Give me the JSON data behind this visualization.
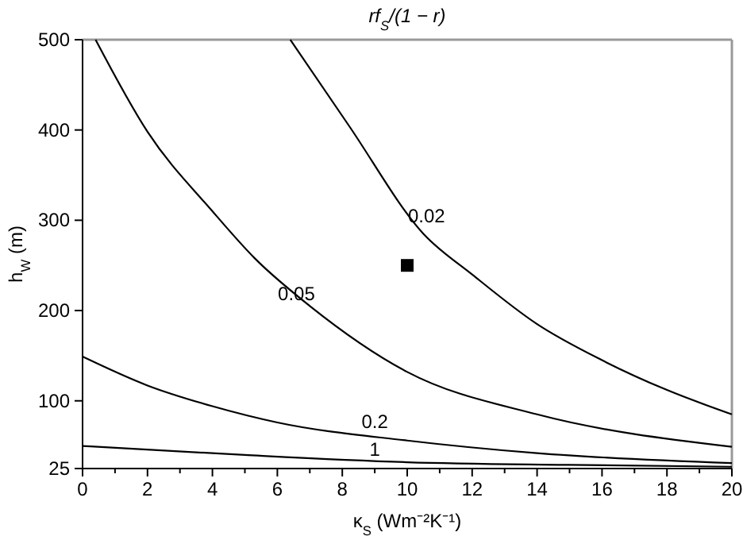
{
  "chart_data": {
    "type": "line",
    "title": "rf$_{S}$/(1 − r)",
    "xlabel": "κ$_{S}$ (Wm⁻²K⁻¹)",
    "ylabel": "h$_{W}$ (m)",
    "xlim": [
      0,
      20
    ],
    "ylim": [
      25,
      500
    ],
    "xticks": [
      0,
      {
        "value": 1,
        "label": null
      },
      2,
      {
        "value": 3,
        "label": null
      },
      4,
      {
        "value": 5,
        "label": null
      },
      6,
      {
        "value": 7,
        "label": null
      },
      8,
      {
        "value": 9,
        "label": null
      },
      10,
      {
        "value": 11,
        "label": null
      },
      12,
      {
        "value": 13,
        "label": null
      },
      14,
      {
        "value": 15,
        "label": null
      },
      16,
      {
        "value": 17,
        "label": null
      },
      18,
      {
        "value": 19,
        "label": null
      },
      20
    ],
    "yticks": [
      25,
      100,
      200,
      300,
      400,
      500
    ],
    "grid": false,
    "marker": "none",
    "line_style": "solid",
    "series": [
      {
        "name": "0.02",
        "color": "#000000",
        "x": [
          6.4,
          8.2,
          10.5,
          12,
          14,
          16,
          18,
          20
        ],
        "values": [
          500,
          405,
          285,
          240,
          185,
          145,
          112,
          85
        ]
      },
      {
        "name": "0.05",
        "color": "#000000",
        "x": [
          0.4,
          2,
          4,
          5.3,
          7,
          10,
          14,
          20
        ],
        "values": [
          500,
          398,
          310,
          258,
          205,
          132,
          85,
          49
        ]
      },
      {
        "name": "0.2",
        "color": "#000000",
        "x": [
          0,
          2,
          4,
          6,
          10,
          14,
          20
        ],
        "values": [
          149,
          117,
          94,
          76,
          56,
          42,
          31
        ]
      },
      {
        "name": "1",
        "color": "#000000",
        "x": [
          0,
          5,
          10,
          15,
          20
        ],
        "values": [
          50,
          40,
          32,
          29,
          27
        ]
      },
      {
        "type": "scatter",
        "marker": "square",
        "color": "#000000",
        "x": [
          10
        ],
        "values": [
          250
        ]
      }
    ]
  }
}
